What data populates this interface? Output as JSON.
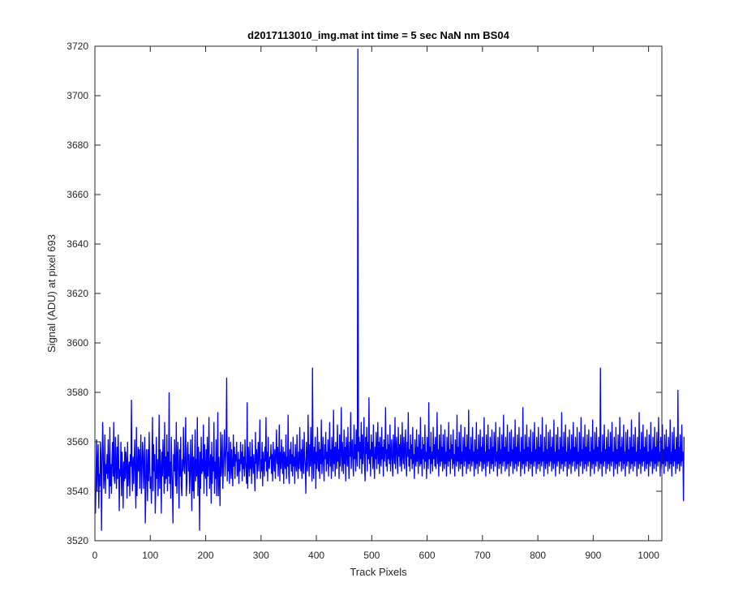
{
  "chart_data": {
    "type": "line",
    "title": "d2017113010_img.mat int time = 5 sec  NaN nm BS04",
    "xlabel": "Track Pixels",
    "ylabel": "Signal (ADU) at pixel 693",
    "xlim": [
      0,
      1024
    ],
    "ylim": [
      3520,
      3720
    ],
    "xticks": [
      0,
      100,
      200,
      300,
      400,
      500,
      600,
      700,
      800,
      900,
      1000
    ],
    "yticks": [
      3520,
      3540,
      3560,
      3580,
      3600,
      3620,
      3640,
      3660,
      3680,
      3700,
      3720
    ],
    "grid": false,
    "series": [
      {
        "color": "#0000ff",
        "x_start": 1,
        "x_step": 1,
        "values": [
          3531,
          3545,
          3561,
          3540,
          3552,
          3559,
          3533,
          3547,
          3542,
          3560,
          3554,
          3524,
          3549,
          3568,
          3557,
          3541,
          3546,
          3563,
          3539,
          3551,
          3547,
          3555,
          3545,
          3561,
          3549,
          3537,
          3566,
          3542,
          3551,
          3539,
          3554,
          3560,
          3546,
          3568,
          3545,
          3543,
          3562,
          3550,
          3541,
          3558,
          3545,
          3563,
          3552,
          3532,
          3549,
          3546,
          3560,
          3538,
          3556,
          3548,
          3533,
          3552,
          3544,
          3558,
          3545,
          3556,
          3552,
          3537,
          3560,
          3542,
          3549,
          3552,
          3538,
          3555,
          3550,
          3577,
          3548,
          3540,
          3554,
          3543,
          3552,
          3561,
          3544,
          3533,
          3566,
          3538,
          3550,
          3558,
          3548,
          3557,
          3541,
          3553,
          3563,
          3539,
          3547,
          3560,
          3555,
          3541,
          3551,
          3562,
          3527,
          3539,
          3557,
          3549,
          3536,
          3557,
          3544,
          3564,
          3550,
          3541,
          3546,
          3535,
          3552,
          3570,
          3540,
          3559,
          3548,
          3555,
          3531,
          3543,
          3562,
          3545,
          3553,
          3538,
          3548,
          3571,
          3541,
          3557,
          3549,
          3531,
          3556,
          3546,
          3561,
          3552,
          3539,
          3568,
          3543,
          3554,
          3545,
          3563,
          3540,
          3556,
          3546,
          3580,
          3543,
          3552,
          3537,
          3562,
          3549,
          3541,
          3527,
          3555,
          3548,
          3561,
          3547,
          3542,
          3568,
          3539,
          3553,
          3560,
          3546,
          3533,
          3557,
          3546,
          3562,
          3542,
          3538,
          3553,
          3548,
          3566,
          3551,
          3547,
          3555,
          3570,
          3538,
          3543,
          3557,
          3560,
          3548,
          3555,
          3539,
          3546,
          3561,
          3549,
          3532,
          3563,
          3540,
          3554,
          3537,
          3550,
          3565,
          3544,
          3553,
          3546,
          3570,
          3538,
          3558,
          3550,
          3524,
          3556,
          3541,
          3562,
          3547,
          3553,
          3548,
          3567,
          3539,
          3559,
          3548,
          3545,
          3557,
          3538,
          3562,
          3546,
          3552,
          3570,
          3541,
          3548,
          3555,
          3535,
          3560,
          3543,
          3554,
          3548,
          3568,
          3539,
          3552,
          3545,
          3561,
          3538,
          3548,
          3572,
          3538,
          3554,
          3545,
          3534,
          3564,
          3546,
          3552,
          3563,
          3541,
          3549,
          3557,
          3565,
          3546,
          3553,
          3559,
          3586,
          3544,
          3556,
          3548,
          3562,
          3543,
          3551,
          3560,
          3545,
          3557,
          3549,
          3542,
          3563,
          3550,
          3558,
          3545,
          3555,
          3552,
          3560,
          3546,
          3549,
          3556,
          3543,
          3553,
          3548,
          3560,
          3551,
          3556,
          3544,
          3559,
          3549,
          3554,
          3546,
          3561,
          3552,
          3548,
          3543,
          3576,
          3541,
          3558,
          3552,
          3546,
          3560,
          3549,
          3554,
          3543,
          3561,
          3552,
          3547,
          3555,
          3549,
          3540,
          3564,
          3551,
          3557,
          3545,
          3553,
          3560,
          3548,
          3556,
          3569,
          3545,
          3553,
          3548,
          3560,
          3542,
          3556,
          3551,
          3546,
          3558,
          3552,
          3570,
          3548,
          3556,
          3544,
          3562,
          3550,
          3549,
          3554,
          3553,
          3559,
          3547,
          3555,
          3544,
          3560,
          3552,
          3548,
          3557,
          3545,
          3555,
          3565,
          3551,
          3558,
          3546,
          3553,
          3567,
          3544,
          3556,
          3549,
          3561,
          3553,
          3547,
          3558,
          3543,
          3556,
          3552,
          3549,
          3563,
          3545,
          3554,
          3550,
          3571,
          3547,
          3543,
          3557,
          3551,
          3560,
          3548,
          3555,
          3546,
          3562,
          3550,
          3554,
          3543,
          3559,
          3552,
          3548,
          3563,
          3551,
          3545,
          3556,
          3549,
          3566,
          3553,
          3548,
          3557,
          3545,
          3561,
          3551,
          3547,
          3564,
          3554,
          3550,
          3539,
          3560,
          3552,
          3548,
          3571,
          3555,
          3546,
          3559,
          3550,
          3566,
          3553,
          3544,
          3590,
          3552,
          3545,
          3558,
          3551,
          3562,
          3541,
          3556,
          3549,
          3566,
          3553,
          3548,
          3560,
          3545,
          3557,
          3551,
          3569,
          3547,
          3554,
          3562,
          3550,
          3544,
          3559,
          3553,
          3564,
          3548,
          3556,
          3551,
          3561,
          3546,
          3555,
          3568,
          3550,
          3557,
          3545,
          3562,
          3553,
          3548,
          3573,
          3551,
          3558,
          3546,
          3560,
          3554,
          3549,
          3567,
          3552,
          3557,
          3545,
          3563,
          3550,
          3556,
          3574,
          3548,
          3560,
          3553,
          3547,
          3565,
          3551,
          3558,
          3544,
          3562,
          3556,
          3550,
          3566,
          3552,
          3545,
          3560,
          3554,
          3572,
          3549,
          3557,
          3561,
          3551,
          3546,
          3567,
          3553,
          3559,
          3548,
          3565,
          3555,
          3550,
          3719,
          3556,
          3562,
          3549,
          3560,
          3553,
          3568,
          3547,
          3563,
          3551,
          3557,
          3570,
          3550,
          3544,
          3562,
          3555,
          3566,
          3548,
          3560,
          3553,
          3578,
          3551,
          3557,
          3546,
          3563,
          3554,
          3560,
          3549,
          3567,
          3552,
          3545,
          3558,
          3553,
          3564,
          3549,
          3556,
          3568,
          3551,
          3560,
          3547,
          3562,
          3554,
          3550,
          3566,
          3553,
          3558,
          3546,
          3561,
          3552,
          3556,
          3574,
          3550,
          3557,
          3548,
          3563,
          3553,
          3559,
          3551,
          3567,
          3548,
          3555,
          3561,
          3552,
          3546,
          3563,
          3556,
          3551,
          3570,
          3549,
          3557,
          3562,
          3552,
          3547,
          3566,
          3554,
          3559,
          3550,
          3563,
          3553,
          3548,
          3568,
          3555,
          3551,
          3562,
          3549,
          3557,
          3565,
          3552,
          3546,
          3560,
          3554,
          3572,
          3550,
          3557,
          3548,
          3563,
          3553,
          3559,
          3549,
          3566,
          3551,
          3555,
          3545,
          3561,
          3554,
          3550,
          3565,
          3552,
          3558,
          3547,
          3563,
          3555,
          3550,
          3570,
          3551,
          3557,
          3546,
          3562,
          3553,
          3559,
          3549,
          3567,
          3552,
          3556,
          3545,
          3562,
          3554,
          3549,
          3576,
          3553,
          3558,
          3547,
          3564,
          3551,
          3556,
          3548,
          3566,
          3553,
          3559,
          3550,
          3562,
          3549,
          3555,
          3572,
          3551,
          3557,
          3546,
          3563,
          3554,
          3550,
          3567,
          3552,
          3558,
          3548,
          3563,
          3553,
          3549,
          3565,
          3551,
          3556,
          3546,
          3562,
          3554,
          3550,
          3568,
          3552,
          3557,
          3547,
          3563,
          3553,
          3559,
          3549,
          3565,
          3551,
          3555,
          3546,
          3561,
          3554,
          3550,
          3571,
          3552,
          3558,
          3548,
          3564,
          3553,
          3549,
          3567,
          3551,
          3556,
          3546,
          3562,
          3555,
          3550,
          3566,
          3552,
          3558,
          3547,
          3563,
          3553,
          3549,
          3573,
          3551,
          3557,
          3548,
          3562,
          3554,
          3550,
          3566,
          3552,
          3556,
          3546,
          3561,
          3553,
          3549,
          3568,
          3551,
          3557,
          3547,
          3563,
          3554,
          3550,
          3565,
          3552,
          3558,
          3548,
          3562,
          3553,
          3549,
          3570,
          3551,
          3556,
          3546,
          3563,
          3554,
          3550,
          3567,
          3552,
          3557,
          3547,
          3562,
          3553,
          3549,
          3565,
          3551,
          3558,
          3548,
          3564,
          3555,
          3550,
          3568,
          3552,
          3556,
          3546,
          3562,
          3554,
          3549,
          3566,
          3551,
          3557,
          3547,
          3563,
          3553,
          3550,
          3571,
          3552,
          3558,
          3548,
          3562,
          3554,
          3549,
          3567,
          3551,
          3556,
          3546,
          3564,
          3553,
          3550,
          3565,
          3552,
          3557,
          3547,
          3562,
          3554,
          3549,
          3569,
          3551,
          3558,
          3548,
          3563,
          3553,
          3550,
          3566,
          3552,
          3556,
          3546,
          3562,
          3554,
          3549,
          3574,
          3551,
          3557,
          3547,
          3563,
          3553,
          3550,
          3567,
          3552,
          3558,
          3548,
          3562,
          3554,
          3549,
          3565,
          3551,
          3556,
          3546,
          3564,
          3553,
          3550,
          3568,
          3552,
          3557,
          3547,
          3562,
          3554,
          3549,
          3566,
          3551,
          3558,
          3548,
          3563,
          3553,
          3550,
          3570,
          3552,
          3556,
          3546,
          3562,
          3554,
          3549,
          3567,
          3551,
          3557,
          3547,
          3564,
          3553,
          3550,
          3565,
          3552,
          3558,
          3548,
          3562,
          3554,
          3549,
          3569,
          3551,
          3556,
          3546,
          3563,
          3553,
          3550,
          3566,
          3552,
          3557,
          3547,
          3562,
          3554,
          3549,
          3572,
          3551,
          3558,
          3548,
          3564,
          3553,
          3550,
          3567,
          3552,
          3556,
          3546,
          3562,
          3554,
          3549,
          3565,
          3551,
          3557,
          3547,
          3563,
          3553,
          3550,
          3568,
          3552,
          3558,
          3548,
          3562,
          3554,
          3549,
          3566,
          3551,
          3556,
          3546,
          3564,
          3553,
          3550,
          3570,
          3552,
          3557,
          3547,
          3562,
          3554,
          3549,
          3567,
          3551,
          3558,
          3548,
          3563,
          3553,
          3550,
          3565,
          3552,
          3556,
          3546,
          3562,
          3554,
          3549,
          3569,
          3551,
          3557,
          3547,
          3564,
          3553,
          3550,
          3566,
          3552,
          3558,
          3548,
          3562,
          3554,
          3549,
          3590,
          3551,
          3556,
          3546,
          3563,
          3553,
          3550,
          3567,
          3552,
          3557,
          3547,
          3562,
          3554,
          3549,
          3565,
          3551,
          3558,
          3548,
          3564,
          3553,
          3550,
          3568,
          3552,
          3556,
          3546,
          3562,
          3554,
          3549,
          3566,
          3551,
          3557,
          3547,
          3563,
          3553,
          3550,
          3570,
          3552,
          3558,
          3548,
          3562,
          3554,
          3549,
          3567,
          3551,
          3556,
          3546,
          3564,
          3553,
          3550,
          3565,
          3552,
          3557,
          3547,
          3562,
          3554,
          3549,
          3569,
          3551,
          3558,
          3548,
          3563,
          3553,
          3550,
          3566,
          3552,
          3556,
          3546,
          3562,
          3554,
          3549,
          3572,
          3551,
          3557,
          3547,
          3564,
          3553,
          3550,
          3567,
          3552,
          3558,
          3548,
          3562,
          3554,
          3549,
          3565,
          3551,
          3556,
          3546,
          3563,
          3553,
          3550,
          3568,
          3552,
          3557,
          3547,
          3562,
          3554,
          3549,
          3566,
          3551,
          3558,
          3548,
          3564,
          3553,
          3550,
          3570,
          3552,
          3556,
          3546,
          3562,
          3554,
          3549,
          3567,
          3551,
          3557,
          3547,
          3563,
          3553,
          3550,
          3565,
          3552,
          3558,
          3548,
          3562,
          3554,
          3549,
          3569,
          3551,
          3556,
          3546,
          3564,
          3553,
          3550,
          3566,
          3552,
          3557,
          3547,
          3562,
          3554,
          3549,
          3581,
          3551,
          3558,
          3548,
          3563,
          3553,
          3550,
          3567,
          3552,
          3556,
          3536,
          3562
        ]
      }
    ]
  }
}
